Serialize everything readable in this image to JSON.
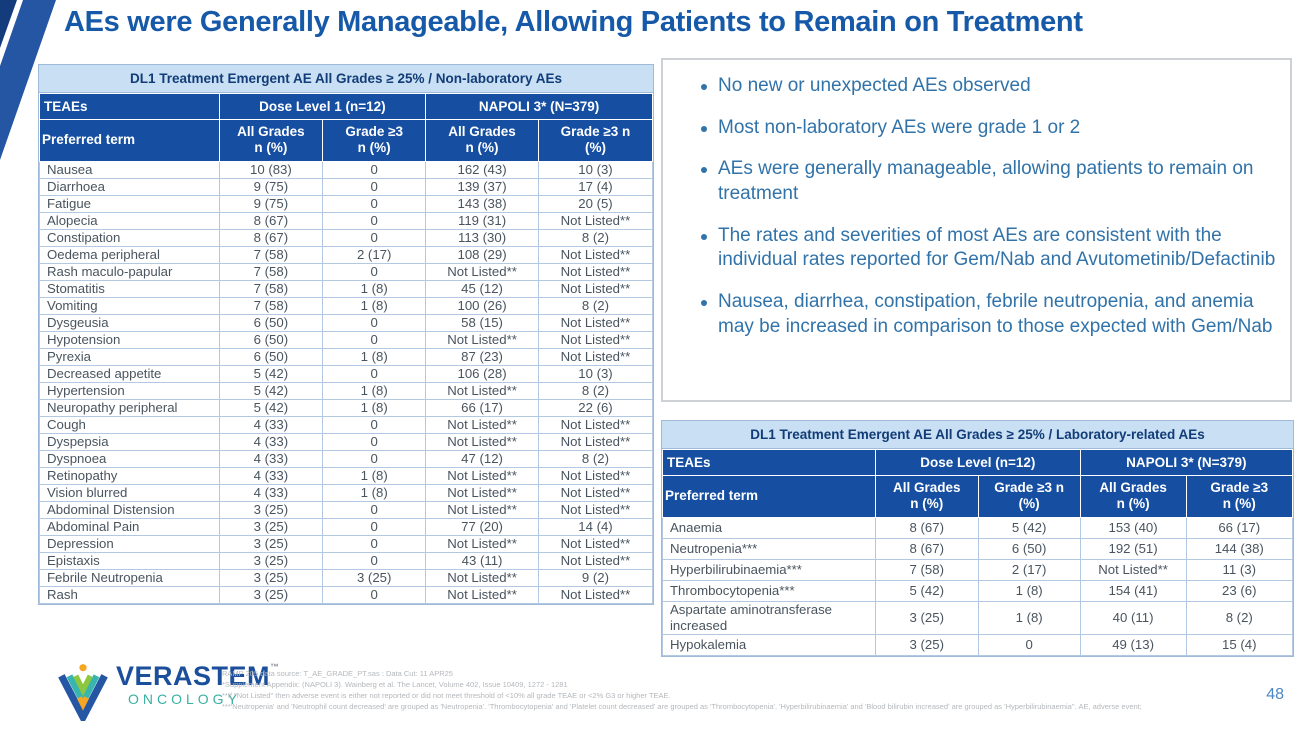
{
  "slide": {
    "title": "AEs were Generally Manageable, Allowing Patients to Remain on Treatment",
    "page_number": "48"
  },
  "colors": {
    "header_blue": "#164FA2",
    "caption_bg": "#C8DFF4",
    "caption_text": "#123C77",
    "title_blue": "#1659A8",
    "bullet_blue": "#3173A9",
    "body_text": "#49545E",
    "table_border": "#B3C9E3",
    "corner_dark_blue": "#143C7C",
    "corner_band_blue": "#2456A4",
    "logo_blue": "#1B4E9B",
    "logo_teal": "#3AB0A2",
    "logo_green": "#8DC63F",
    "logo_orange": "#F5A623"
  },
  "nonlab_table": {
    "caption": "DL1 Treatment Emergent AE All Grades ≥ 25% / Non-laboratory AEs",
    "group_headers": [
      "TEAEs",
      "Dose Level 1 (n=12)",
      "NAPOLI 3* (N=379)"
    ],
    "col_headers": [
      "Preferred term",
      "All Grades\nn (%)",
      "Grade ≥3\nn (%)",
      "All Grades\nn (%)",
      "Grade ≥3 n\n(%)"
    ],
    "rows": [
      [
        "Nausea",
        "10 (83)",
        "0",
        "162 (43)",
        "10 (3)"
      ],
      [
        "Diarrhoea",
        "9 (75)",
        "0",
        "139 (37)",
        "17 (4)"
      ],
      [
        "Fatigue",
        "9 (75)",
        "0",
        "143 (38)",
        "20 (5)"
      ],
      [
        "Alopecia",
        "8 (67)",
        "0",
        "119 (31)",
        "Not Listed**"
      ],
      [
        "Constipation",
        "8 (67)",
        "0",
        "113 (30)",
        "8 (2)"
      ],
      [
        "Oedema peripheral",
        "7 (58)",
        "2 (17)",
        "108 (29)",
        "Not Listed**"
      ],
      [
        "Rash maculo-papular",
        "7 (58)",
        "0",
        "Not Listed**",
        "Not Listed**"
      ],
      [
        "Stomatitis",
        "7 (58)",
        "1 (8)",
        "45 (12)",
        "Not Listed**"
      ],
      [
        "Vomiting",
        "7 (58)",
        "1 (8)",
        "100 (26)",
        "8 (2)"
      ],
      [
        "Dysgeusia",
        "6 (50)",
        "0",
        "58 (15)",
        "Not Listed**"
      ],
      [
        "Hypotension",
        "6 (50)",
        "0",
        "Not Listed**",
        "Not Listed**"
      ],
      [
        "Pyrexia",
        "6 (50)",
        "1 (8)",
        "87 (23)",
        "Not Listed**"
      ],
      [
        "Decreased appetite",
        "5 (42)",
        "0",
        "106 (28)",
        "10 (3)"
      ],
      [
        "Hypertension",
        "5 (42)",
        "1 (8)",
        "Not Listed**",
        "8 (2)"
      ],
      [
        "Neuropathy peripheral",
        "5 (42)",
        "1 (8)",
        "66 (17)",
        "22 (6)"
      ],
      [
        "Cough",
        "4 (33)",
        "0",
        "Not Listed**",
        "Not Listed**"
      ],
      [
        "Dyspepsia",
        "4 (33)",
        "0",
        "Not Listed**",
        "Not Listed**"
      ],
      [
        "Dyspnoea",
        "4 (33)",
        "0",
        "47 (12)",
        "8 (2)"
      ],
      [
        "Retinopathy",
        "4 (33)",
        "1 (8)",
        "Not Listed**",
        "Not Listed**"
      ],
      [
        "Vision blurred",
        "4 (33)",
        "1 (8)",
        "Not Listed**",
        "Not Listed**"
      ],
      [
        "Abdominal Distension",
        "3 (25)",
        "0",
        "Not Listed**",
        "Not Listed**"
      ],
      [
        "Abdominal Pain",
        "3 (25)",
        "0",
        "77 (20)",
        "14 (4)"
      ],
      [
        "Depression",
        "3 (25)",
        "0",
        "Not Listed**",
        "Not Listed**"
      ],
      [
        "Epistaxis",
        "3 (25)",
        "0",
        "43 (11)",
        "Not Listed**"
      ],
      [
        "Febrile Neutropenia",
        "3 (25)",
        "3 (25)",
        "Not Listed**",
        "9 (2)"
      ],
      [
        "Rash",
        "3 (25)",
        "0",
        "Not Listed**",
        "Not Listed**"
      ]
    ]
  },
  "bullets": {
    "items": [
      "No new or unexpected AEs observed",
      "Most non-laboratory AEs were grade 1 or 2",
      "AEs were generally manageable, allowing patients to remain on treatment",
      "The rates and severities of most AEs are consistent with the individual rates reported for Gem/Nab and Avutometinib/Defactinib",
      "Nausea, diarrhea, constipation, febrile neutropenia, and anemia may be increased in comparison to those expected with Gem/Nab"
    ]
  },
  "lab_table": {
    "caption": "DL1 Treatment Emergent AE All Grades ≥ 25% / Laboratory-related AEs",
    "group_headers": [
      "TEAEs",
      "Dose Level (n=12)",
      "NAPOLI 3* (N=379)"
    ],
    "col_headers": [
      "Preferred term",
      "All Grades\nn (%)",
      "Grade ≥3 n\n(%)",
      "All Grades\nn (%)",
      "Grade ≥3\nn (%)"
    ],
    "rows": [
      [
        "Anaemia",
        "8 (67)",
        "5 (42)",
        "153 (40)",
        "66 (17)"
      ],
      [
        "Neutropenia***",
        "8 (67)",
        "6 (50)",
        "192 (51)",
        "144 (38)"
      ],
      [
        "Hyperbilirubinaemia***",
        "7 (58)",
        "2 (17)",
        "Not Listed**",
        "11 (3)"
      ],
      [
        "Thrombocytopenia***",
        "5 (42)",
        "1 (8)",
        "154 (41)",
        "23 (6)"
      ],
      [
        "Aspartate aminotransferase increased",
        "3 (25)",
        "1 (8)",
        "40 (11)",
        "8 (2)"
      ],
      [
        "Hypokalemia",
        "3 (25)",
        "0",
        "49 (13)",
        "15 (4)"
      ]
    ]
  },
  "footer": {
    "logo_word": "VERASTEM",
    "logo_tm": "™",
    "logo_sub": "ONCOLOGY",
    "footnotes": [
      "RAMP 205 data source: T_AE_GRADE_PT.sas : Data Cut: 11 APR25",
      "*Supplement Appendix: (NAPOLI 3). Wainberg  et al. The Lancet, Volume 402, Issue 10409, 1272 - 1281",
      "**If \"Not Listed\" then adverse event is either not reported or did not meet threshold of <10% all grade TEAE or <2% G3 or higher TEAE.",
      "***'Neutropenia' and 'Neutrophil count decreased' are grouped as 'Neutropenia'. 'Thrombocytopenia' and 'Platelet count decreased' are grouped as 'Thrombocytopenia'. 'Hyperbilirubinaemia' and 'Blood bilirubin increased' are grouped as 'Hyperbilirubinaemia''. AE, adverse event;"
    ]
  }
}
